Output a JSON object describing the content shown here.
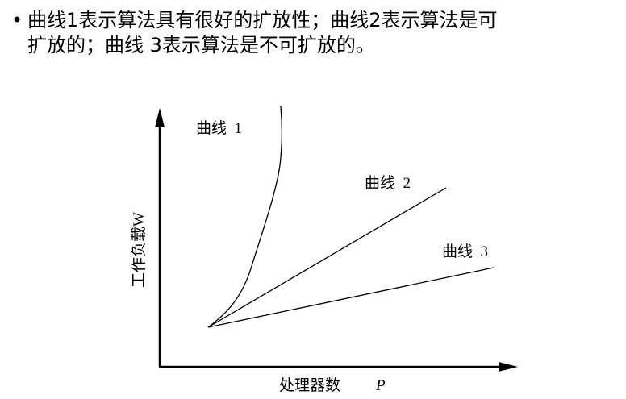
{
  "slide": {
    "bullet": "•",
    "line1": "曲线1表示算法具有很好的扩放性；曲线2表示算法是可",
    "line2": "扩放的；曲线 3表示算法是不可扩放的。"
  },
  "figure": {
    "y_axis_label": "工作负载W",
    "x_axis_label": "处理器数",
    "x_axis_symbol": "P",
    "curves": [
      {
        "label": "曲线  3"
      },
      {
        "label": "曲线  2"
      },
      {
        "label": "曲线  1"
      }
    ]
  }
}
